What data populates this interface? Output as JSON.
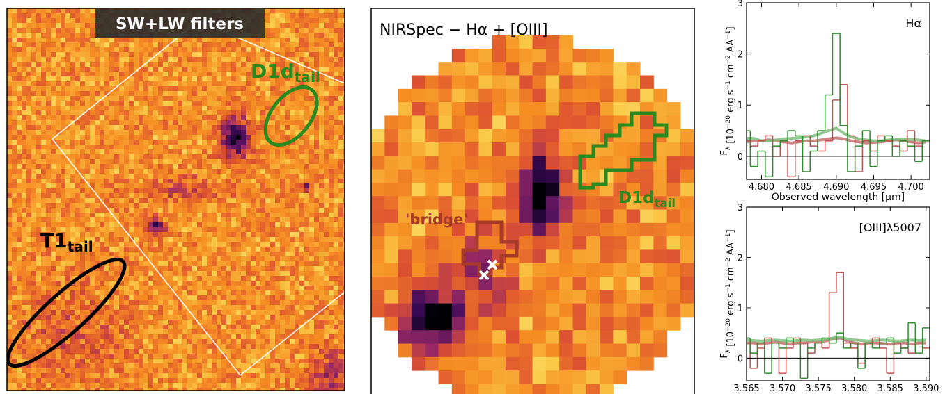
{
  "images": [
    {
      "title": "SW+LW filters",
      "labels": [
        {
          "main": "D1d",
          "sub": "tail"
        },
        {
          "main": "T1",
          "sub": "tail"
        }
      ]
    },
    {
      "title": "NIRSpec − Hα + [OIII]",
      "labels": [
        {
          "main": "'bridge'"
        },
        {
          "main": "D1d",
          "sub": "tail"
        }
      ]
    }
  ],
  "chart_data": [
    {
      "type": "step",
      "annotation": "Hα",
      "xlabel": "Observed wavelength [μm]",
      "ylabel": [
        "F",
        "λ",
        " [10",
        "−20",
        " erg s",
        "−1",
        " cm",
        "−2",
        " AA",
        "−1",
        "]"
      ],
      "xlim": [
        4.678,
        4.7025
      ],
      "ylim": [
        -0.45,
        3
      ],
      "xticks": [
        {
          "value": 4.68,
          "label": "4.680"
        },
        {
          "value": 4.685,
          "label": "4.685"
        },
        {
          "value": 4.69,
          "label": "4.690"
        },
        {
          "value": 4.695,
          "label": "4.695"
        },
        {
          "value": 4.7,
          "label": "4.700"
        }
      ],
      "yticks": [
        0,
        1,
        2,
        3
      ],
      "hline": 0,
      "x": [
        4.678,
        4.679,
        4.68,
        4.681,
        4.682,
        4.683,
        4.684,
        4.685,
        4.686,
        4.687,
        4.688,
        4.689,
        4.69,
        4.691,
        4.692,
        4.693,
        4.694,
        4.695,
        4.696,
        4.697,
        4.698,
        4.699,
        4.7,
        4.701,
        4.702
      ],
      "series": [
        {
          "color": "#c87070",
          "style": "model",
          "values": [
            0.28,
            0.3,
            0.3,
            0.32,
            0.3,
            0.28,
            0.26,
            0.28,
            0.3,
            0.3,
            0.32,
            0.34,
            0.36,
            0.34,
            0.3,
            0.28,
            0.26,
            0.27,
            0.28,
            0.3,
            0.32,
            0.3,
            0.28,
            0.26,
            0.28
          ]
        },
        {
          "color": "#7dbf7d",
          "style": "model",
          "values": [
            0.35,
            0.35,
            0.3,
            0.3,
            0.32,
            0.34,
            0.35,
            0.36,
            0.38,
            0.4,
            0.45,
            0.5,
            0.55,
            0.45,
            0.38,
            0.34,
            0.32,
            0.3,
            0.3,
            0.32,
            0.33,
            0.34,
            0.33,
            0.32,
            0.3
          ]
        },
        {
          "color": "#c05050",
          "style": "step",
          "values": [
            0.3,
            0.2,
            0.3,
            0.4,
            0.0,
            0.3,
            -0.4,
            0.3,
            0.4,
            0.2,
            0.1,
            0.3,
            1.1,
            1.4,
            0.4,
            -0.3,
            0.3,
            0.1,
            0.4,
            0.3,
            0.2,
            0.1,
            0.5,
            0.2,
            0.3
          ]
        },
        {
          "color": "#2e8b2e",
          "style": "step",
          "values": [
            0.5,
            -0.2,
            0.1,
            -0.4,
            0.2,
            0.3,
            0.5,
            0.4,
            -0.3,
            0.1,
            0.5,
            1.2,
            2.4,
            0.6,
            -0.3,
            0.2,
            0.5,
            -0.2,
            0.3,
            0.4,
            0.0,
            0.3,
            0.2,
            -0.1,
            0.3
          ]
        }
      ]
    },
    {
      "type": "step",
      "annotation": "[OIII]λ5007",
      "xlabel": "Observed wavelength [μm]",
      "ylabel": [
        "F",
        "λ",
        " [10",
        "−20",
        " erg s",
        "−1",
        " cm",
        "−2",
        " AA",
        "−1",
        "]"
      ],
      "xlim": [
        3.565,
        3.5905
      ],
      "ylim": [
        -0.45,
        3
      ],
      "xticks": [
        3.565,
        {
          "value": 3.57,
          "label": "3.570"
        },
        3.575,
        {
          "value": 3.58,
          "label": "3.580"
        },
        3.585,
        {
          "value": 3.59,
          "label": "3.590"
        }
      ],
      "yticks": [
        0,
        1,
        2,
        3
      ],
      "hline": 0,
      "x": [
        3.565,
        3.566,
        3.567,
        3.568,
        3.569,
        3.57,
        3.571,
        3.572,
        3.573,
        3.574,
        3.575,
        3.576,
        3.577,
        3.578,
        3.579,
        3.58,
        3.581,
        3.582,
        3.583,
        3.584,
        3.585,
        3.586,
        3.587,
        3.588,
        3.589,
        3.59
      ],
      "series": [
        {
          "color": "#c87070",
          "style": "model",
          "values": [
            0.3,
            0.3,
            0.28,
            0.3,
            0.32,
            0.3,
            0.28,
            0.3,
            0.3,
            0.32,
            0.33,
            0.34,
            0.38,
            0.4,
            0.34,
            0.3,
            0.28,
            0.3,
            0.3,
            0.29,
            0.28,
            0.3,
            0.3,
            0.28,
            0.3,
            0.3
          ]
        },
        {
          "color": "#7dbf7d",
          "style": "model",
          "values": [
            0.36,
            0.35,
            0.34,
            0.35,
            0.36,
            0.35,
            0.34,
            0.35,
            0.36,
            0.35,
            0.36,
            0.37,
            0.4,
            0.42,
            0.38,
            0.36,
            0.35,
            0.34,
            0.35,
            0.36,
            0.35,
            0.34,
            0.35,
            0.36,
            0.35,
            0.36
          ]
        },
        {
          "color": "#c05050",
          "style": "step",
          "values": [
            0.3,
            -0.2,
            0.2,
            0.4,
            0.3,
            -0.3,
            0.2,
            0.4,
            0.3,
            0.1,
            0.3,
            0.2,
            1.3,
            1.7,
            0.3,
            0.2,
            -0.1,
            0.3,
            0.4,
            0.2,
            -0.3,
            0.3,
            0.2,
            0.1,
            0.3,
            0.2
          ]
        },
        {
          "color": "#2e8b2e",
          "style": "step",
          "values": [
            0.4,
            0.1,
            0.3,
            -0.3,
            0.3,
            0.2,
            0.4,
            0.3,
            -0.4,
            0.2,
            0.3,
            0.4,
            0.3,
            0.5,
            0.2,
            0.3,
            -0.2,
            0.3,
            0.2,
            0.3,
            0.4,
            0.1,
            0.2,
            0.7,
            0.1,
            0.6
          ]
        }
      ]
    }
  ]
}
